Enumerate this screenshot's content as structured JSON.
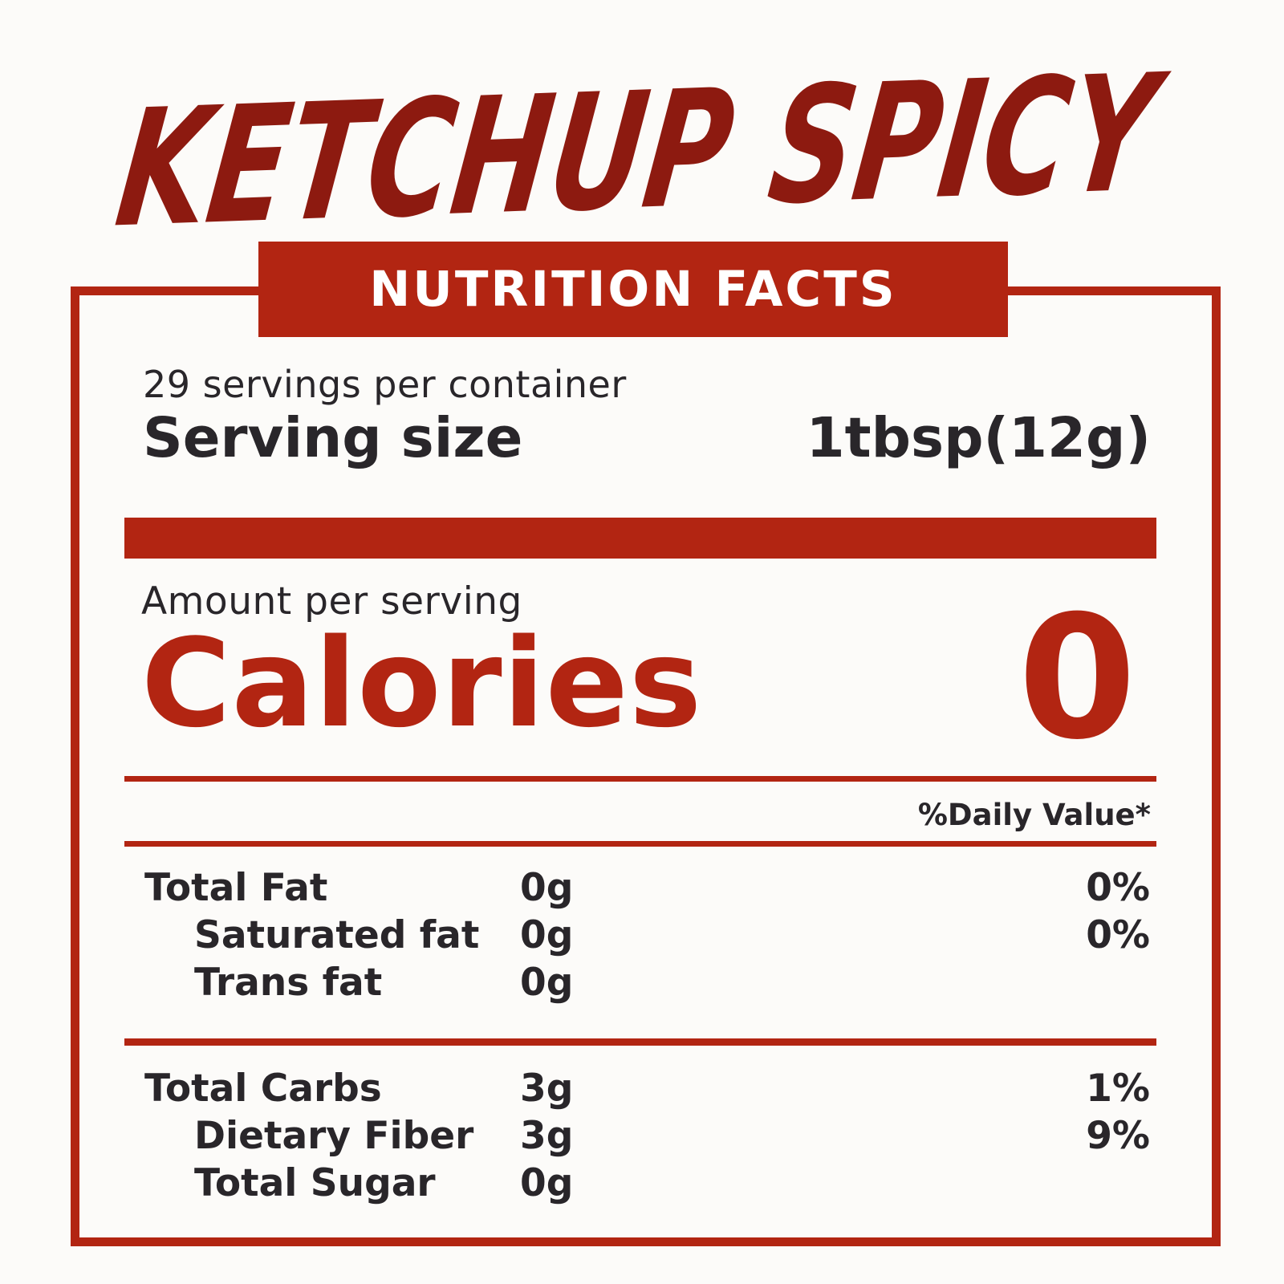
{
  "colors": {
    "accent_red": "#b22512",
    "title_red": "#8d1a10",
    "text_dark": "#29262a",
    "banner_text": "#ffffff",
    "background": "#fcfbf9"
  },
  "title": "KETCHUP SPICY",
  "banner_label": "NUTRITION FACTS",
  "serving_info": {
    "servings_per_container": "29 servings per container",
    "serving_size_label": "Serving size",
    "serving_size_value": "1tbsp(12g)"
  },
  "calories": {
    "amount_per_serving_label": "Amount per serving",
    "label": "Calories",
    "value": "0"
  },
  "daily_value_header": "%Daily Value*",
  "sections": [
    {
      "name": "fats",
      "rows": [
        {
          "label": "Total Fat",
          "amount": "0g",
          "daily_value": "0%"
        },
        {
          "label": "Saturated fat",
          "amount": "0g",
          "daily_value": "0%"
        },
        {
          "label": "Trans fat",
          "amount": "0g",
          "daily_value": ""
        }
      ]
    },
    {
      "name": "carbs",
      "rows": [
        {
          "label": "Total Carbs",
          "amount": "3g",
          "daily_value": "1%"
        },
        {
          "label": "Dietary Fiber",
          "amount": "3g",
          "daily_value": "9%"
        },
        {
          "label": "Total Sugar",
          "amount": "0g",
          "daily_value": ""
        }
      ]
    }
  ]
}
